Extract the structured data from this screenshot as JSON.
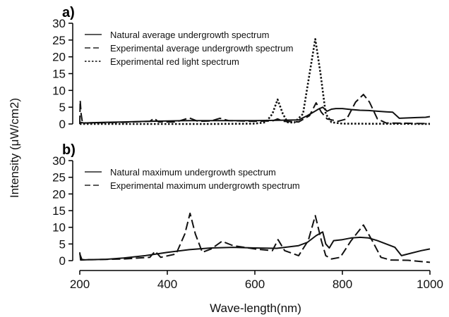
{
  "ylabel": "Intensity (μW/cm2)",
  "xlabel": "Wave-length(nm)",
  "chart_data": [
    {
      "type": "line",
      "panel_label": "a)",
      "xlim": [
        200,
        1000
      ],
      "ylim": [
        0,
        30
      ],
      "yticks": [
        0,
        5,
        10,
        15,
        20,
        25,
        30
      ],
      "xticks": [],
      "grid": false,
      "legend_position": "top-left",
      "series": [
        {
          "name": "Natural average undergrowth spectrum",
          "dash": "solid",
          "points": [
            [
              200,
              0.5
            ],
            [
              210,
              0.3
            ],
            [
              230,
              0.4
            ],
            [
              260,
              0.5
            ],
            [
              300,
              0.6
            ],
            [
              350,
              0.8
            ],
            [
              400,
              0.9
            ],
            [
              450,
              1.0
            ],
            [
              500,
              1.0
            ],
            [
              550,
              1.0
            ],
            [
              600,
              1.0
            ],
            [
              650,
              1.1
            ],
            [
              700,
              1.2
            ],
            [
              720,
              2.5
            ],
            [
              735,
              3.6
            ],
            [
              745,
              4.4
            ],
            [
              755,
              5.0
            ],
            [
              765,
              3.8
            ],
            [
              775,
              4.4
            ],
            [
              785,
              4.6
            ],
            [
              800,
              4.6
            ],
            [
              820,
              4.3
            ],
            [
              840,
              4.1
            ],
            [
              860,
              4.0
            ],
            [
              880,
              3.8
            ],
            [
              900,
              3.6
            ],
            [
              915,
              3.5
            ],
            [
              930,
              1.7
            ],
            [
              950,
              1.8
            ],
            [
              970,
              1.9
            ],
            [
              990,
              2.0
            ],
            [
              1000,
              2.2
            ]
          ]
        },
        {
          "name": "Experimental average undergrowth spectrum",
          "dash": "dashed",
          "points": [
            [
              200,
              0
            ],
            [
              201,
              7
            ],
            [
              203,
              3
            ],
            [
              206,
              0.5
            ],
            [
              215,
              0.3
            ],
            [
              300,
              0.5
            ],
            [
              360,
              0.8
            ],
            [
              370,
              1.7
            ],
            [
              380,
              0.6
            ],
            [
              420,
              0.6
            ],
            [
              450,
              1.8
            ],
            [
              470,
              0.8
            ],
            [
              500,
              0.9
            ],
            [
              520,
              1.7
            ],
            [
              540,
              1.0
            ],
            [
              600,
              0.8
            ],
            [
              640,
              0.9
            ],
            [
              652,
              1.5
            ],
            [
              665,
              0.8
            ],
            [
              700,
              0.6
            ],
            [
              725,
              2.5
            ],
            [
              740,
              6.3
            ],
            [
              752,
              3.5
            ],
            [
              765,
              1.5
            ],
            [
              790,
              0.8
            ],
            [
              810,
              1.5
            ],
            [
              830,
              6.5
            ],
            [
              848,
              8.8
            ],
            [
              862,
              6.5
            ],
            [
              880,
              1.5
            ],
            [
              900,
              0.3
            ],
            [
              950,
              0.2
            ],
            [
              1000,
              0.1
            ]
          ]
        },
        {
          "name": "Experimental red light spectrum",
          "dash": "dotted",
          "points": [
            [
              200,
              0
            ],
            [
              300,
              0
            ],
            [
              500,
              0
            ],
            [
              600,
              0.1
            ],
            [
              625,
              0.5
            ],
            [
              640,
              3
            ],
            [
              652,
              7.3
            ],
            [
              664,
              3
            ],
            [
              675,
              0.5
            ],
            [
              690,
              0.4
            ],
            [
              710,
              3
            ],
            [
              725,
              15
            ],
            [
              738,
              25.3
            ],
            [
              750,
              15
            ],
            [
              762,
              3
            ],
            [
              775,
              0.5
            ],
            [
              800,
              0.1
            ],
            [
              1000,
              0
            ]
          ]
        }
      ]
    },
    {
      "type": "line",
      "panel_label": "b)",
      "xlim": [
        200,
        1000
      ],
      "ylim": [
        0,
        30
      ],
      "yticks": [
        0,
        5,
        10,
        15,
        20,
        25,
        30
      ],
      "xticks": [
        200,
        400,
        600,
        800,
        1000
      ],
      "grid": false,
      "legend_position": "top-left",
      "series": [
        {
          "name": "Natural maximum undergrowth spectrum",
          "dash": "solid",
          "points": [
            [
              200,
              2.5
            ],
            [
              202,
              0.2
            ],
            [
              220,
              0.3
            ],
            [
              260,
              0.4
            ],
            [
              300,
              0.8
            ],
            [
              350,
              1.5
            ],
            [
              400,
              2.5
            ],
            [
              450,
              3.3
            ],
            [
              500,
              3.8
            ],
            [
              550,
              4.0
            ],
            [
              600,
              3.8
            ],
            [
              650,
              3.7
            ],
            [
              700,
              4.5
            ],
            [
              720,
              5.5
            ],
            [
              740,
              7.5
            ],
            [
              755,
              8.6
            ],
            [
              762,
              5
            ],
            [
              770,
              3.8
            ],
            [
              780,
              6.0
            ],
            [
              800,
              6.3
            ],
            [
              820,
              6.8
            ],
            [
              840,
              7.0
            ],
            [
              860,
              6.8
            ],
            [
              880,
              6.0
            ],
            [
              900,
              5.0
            ],
            [
              920,
              4.0
            ],
            [
              935,
              1.5
            ],
            [
              950,
              2.0
            ],
            [
              980,
              3.0
            ],
            [
              1000,
              3.5
            ]
          ]
        },
        {
          "name": "Experimental maximum undergrowth spectrum",
          "dash": "dashed",
          "points": [
            [
              200,
              2
            ],
            [
              205,
              0.3
            ],
            [
              230,
              0.3
            ],
            [
              300,
              0.5
            ],
            [
              360,
              1.0
            ],
            [
              372,
              2.8
            ],
            [
              385,
              1.0
            ],
            [
              420,
              2.0
            ],
            [
              440,
              8
            ],
            [
              452,
              14.2
            ],
            [
              464,
              8
            ],
            [
              480,
              2.5
            ],
            [
              500,
              3.5
            ],
            [
              525,
              5.8
            ],
            [
              550,
              4.5
            ],
            [
              600,
              3.5
            ],
            [
              640,
              3.0
            ],
            [
              653,
              6.3
            ],
            [
              668,
              3.0
            ],
            [
              700,
              1.5
            ],
            [
              722,
              6
            ],
            [
              738,
              13.5
            ],
            [
              752,
              6
            ],
            [
              762,
              1.5
            ],
            [
              775,
              0.5
            ],
            [
              795,
              1.0
            ],
            [
              820,
              6
            ],
            [
              848,
              10.7
            ],
            [
              868,
              6
            ],
            [
              888,
              1.0
            ],
            [
              910,
              0.2
            ],
            [
              950,
              0.1
            ],
            [
              1000,
              -0.5
            ]
          ]
        }
      ]
    }
  ]
}
